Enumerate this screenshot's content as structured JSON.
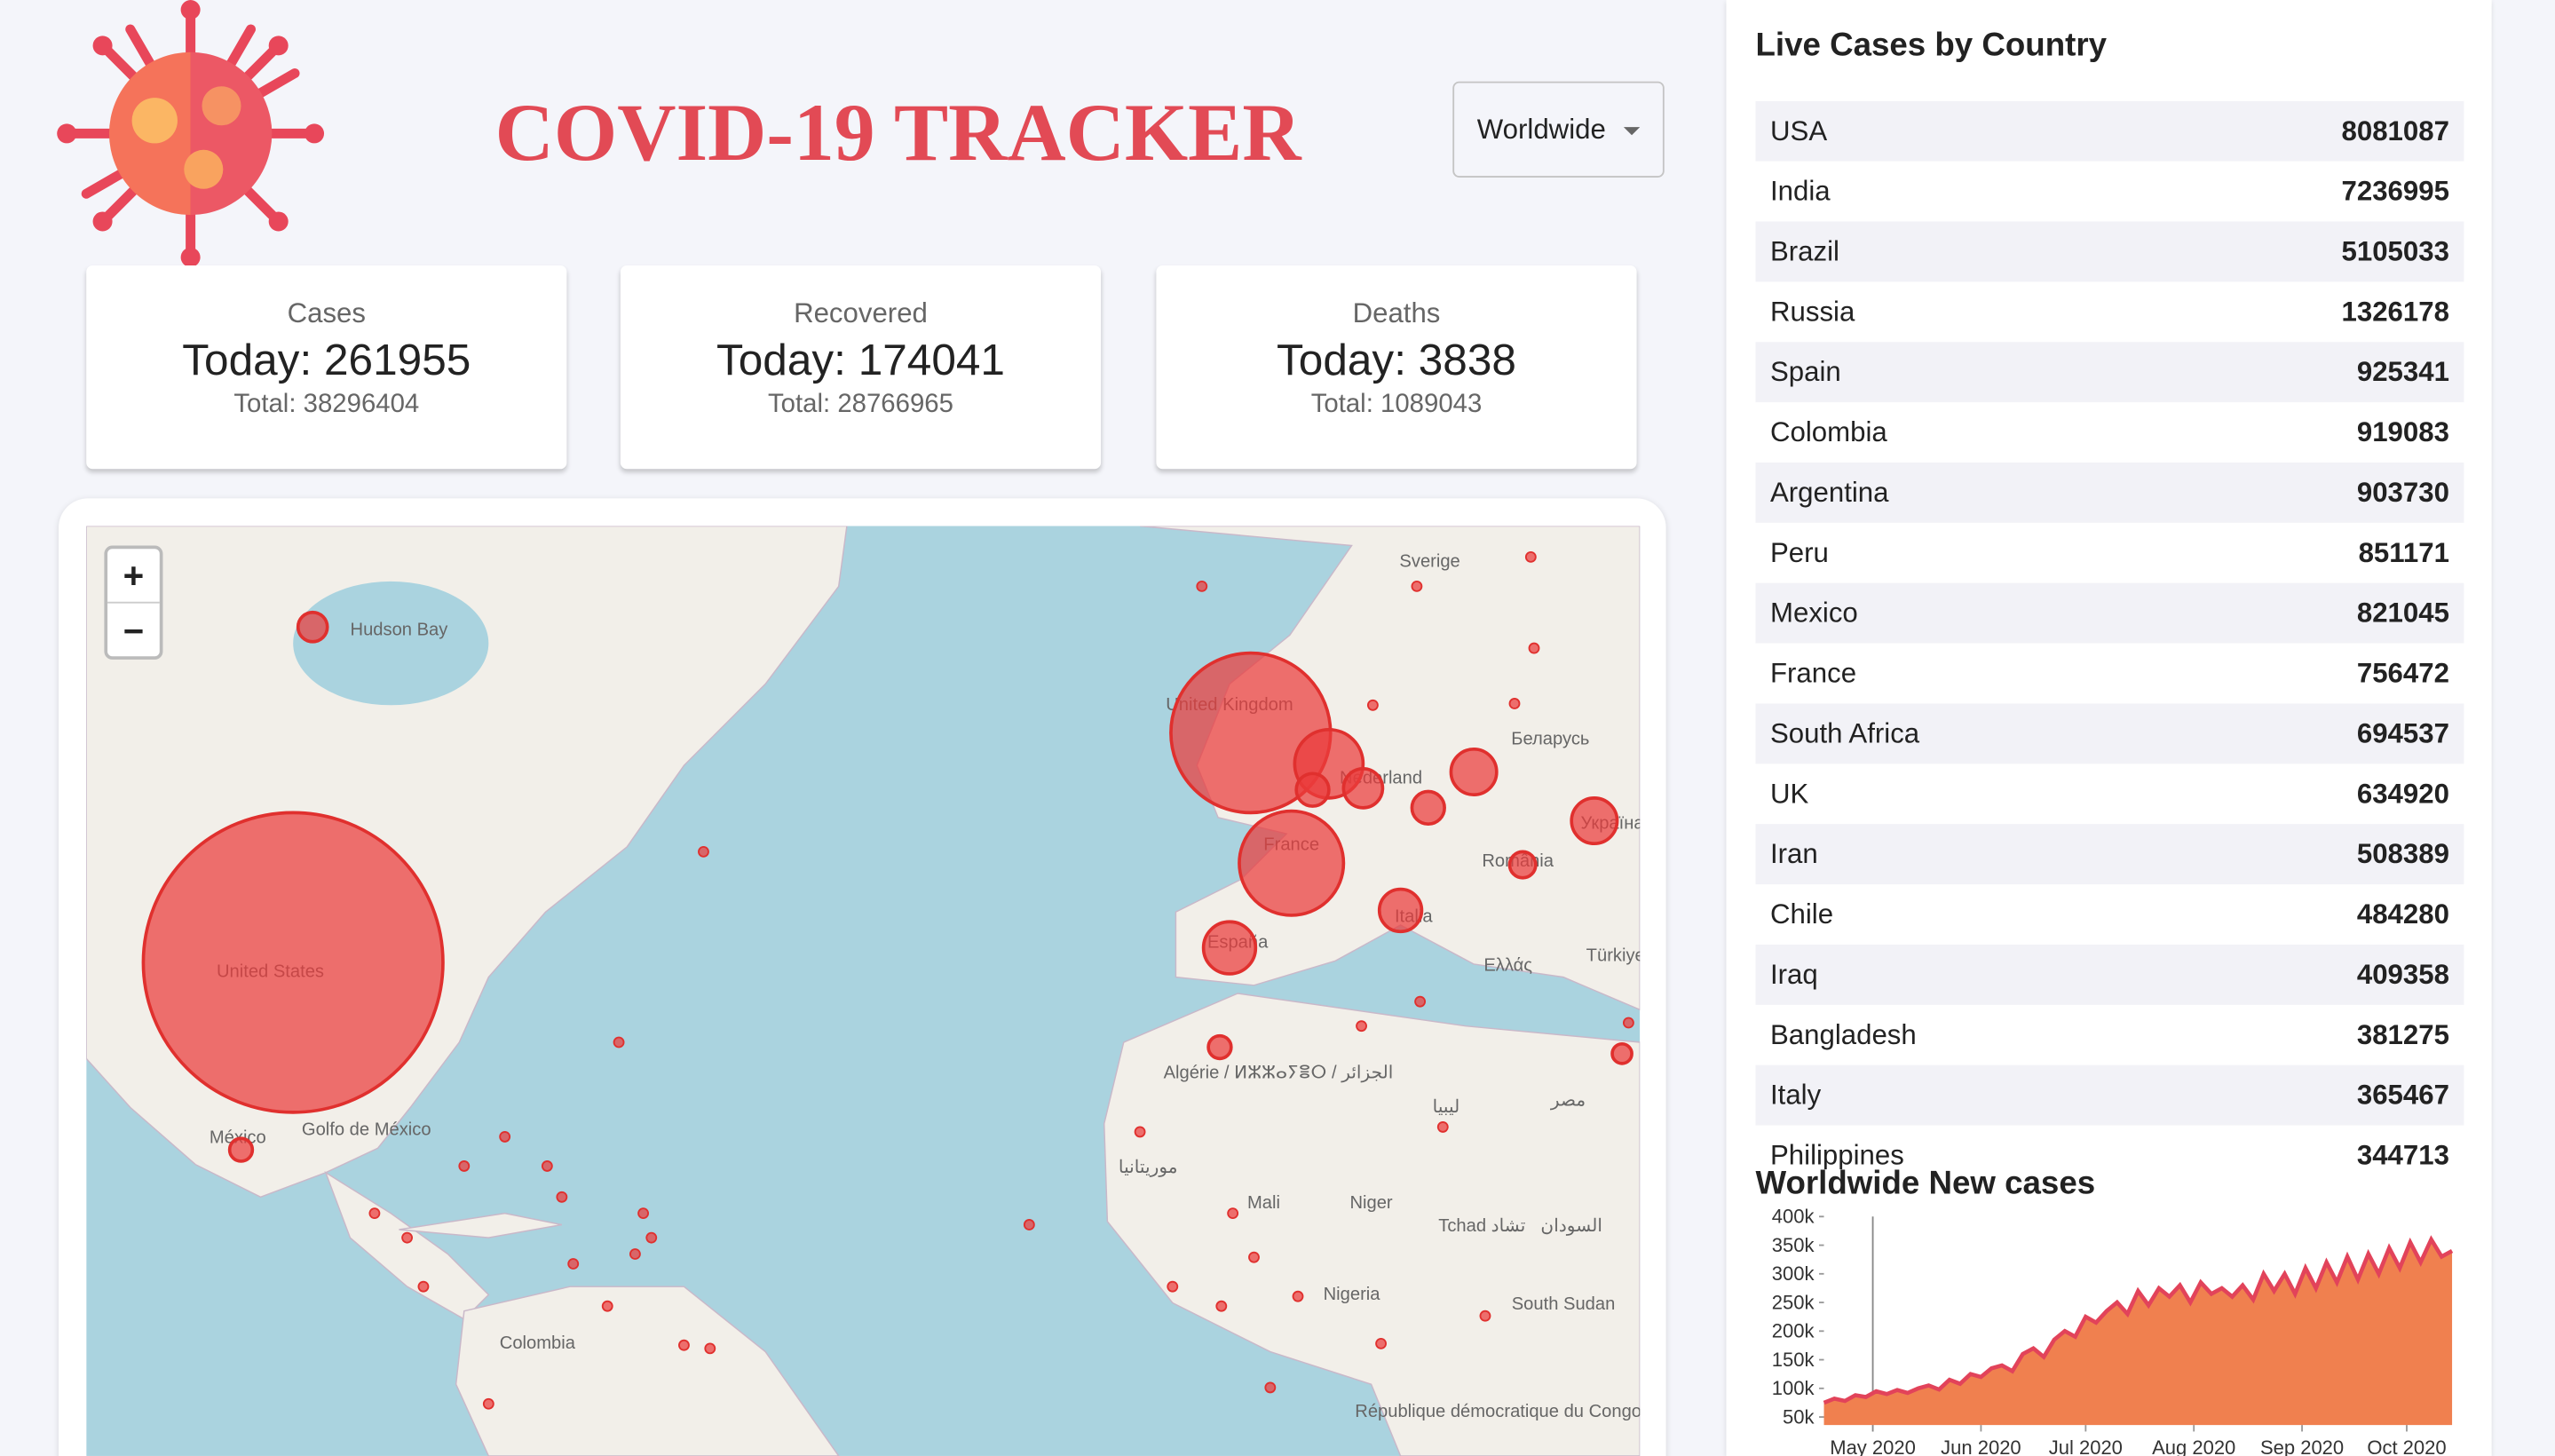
{
  "header": {
    "title": "COVID-19 TRACKER",
    "selector": "Worldwide"
  },
  "stats": [
    {
      "label": "Cases",
      "today_prefix": "Today:",
      "today": 261955,
      "total_prefix": "Total:",
      "total": 38296404
    },
    {
      "label": "Recovered",
      "today_prefix": "Today:",
      "today": 174041,
      "total_prefix": "Total:",
      "total": 28766965
    },
    {
      "label": "Deaths",
      "today_prefix": "Today:",
      "today": 3838,
      "total_prefix": "Total:",
      "total": 1089043
    }
  ],
  "map": {
    "zoom_in": "+",
    "zoom_out": "−",
    "labels": [
      "Hudson Bay",
      "Sverige",
      "United Kingdom",
      "Беларусь",
      "Nederland",
      "France",
      "România",
      "Україна",
      "España",
      "Italia",
      "Ελλάς",
      "Türkiye",
      "United States",
      "México",
      "Golfo de México",
      "Algérie / ⵍⵣⵣⴰⵢⴻⵔ / الجزائر",
      "ليبيا",
      "مصر",
      "موريتانيا",
      "Mali",
      "Niger",
      "Tchad تشاد",
      "السودان",
      "Nigeria",
      "South Sudan",
      "Colombia",
      "République démocratique du Congo"
    ]
  },
  "table": {
    "title": "Live Cases by Country",
    "rows": [
      [
        "USA",
        8081087
      ],
      [
        "India",
        7236995
      ],
      [
        "Brazil",
        5105033
      ],
      [
        "Russia",
        1326178
      ],
      [
        "Spain",
        925341
      ],
      [
        "Colombia",
        919083
      ],
      [
        "Argentina",
        903730
      ],
      [
        "Peru",
        851171
      ],
      [
        "Mexico",
        821045
      ],
      [
        "France",
        756472
      ],
      [
        "South Africa",
        694537
      ],
      [
        "UK",
        634920
      ],
      [
        "Iran",
        508389
      ],
      [
        "Chile",
        484280
      ],
      [
        "Iraq",
        409358
      ],
      [
        "Bangladesh",
        381275
      ],
      [
        "Italy",
        365467
      ],
      [
        "Philippines",
        344713
      ]
    ]
  },
  "chart_data": {
    "type": "area",
    "title": "Worldwide New cases",
    "color": "#f0804f",
    "line_color": "#e2435a",
    "x": [
      0,
      3,
      6,
      9,
      12,
      15,
      18,
      21,
      24,
      27,
      30,
      33,
      36,
      39,
      42,
      45,
      48,
      51,
      54,
      57,
      60,
      63,
      66,
      69,
      72,
      75,
      78,
      81,
      84,
      87,
      90,
      93,
      96,
      99,
      102,
      105,
      108,
      111,
      114,
      117,
      120,
      123,
      126,
      129,
      132,
      135,
      138,
      141,
      144,
      147,
      150,
      153,
      156,
      159,
      162,
      165,
      168,
      171,
      174,
      177,
      180
    ],
    "values": [
      75000,
      82000,
      78000,
      88000,
      85000,
      95000,
      90000,
      97000,
      92000,
      100000,
      105000,
      98000,
      115000,
      108000,
      125000,
      120000,
      135000,
      140000,
      130000,
      160000,
      170000,
      155000,
      185000,
      200000,
      190000,
      225000,
      215000,
      235000,
      250000,
      230000,
      270000,
      245000,
      275000,
      260000,
      280000,
      250000,
      285000,
      265000,
      275000,
      260000,
      280000,
      255000,
      300000,
      270000,
      300000,
      265000,
      310000,
      275000,
      320000,
      285000,
      330000,
      290000,
      335000,
      300000,
      345000,
      310000,
      355000,
      320000,
      360000,
      330000,
      340000
    ],
    "xlim": [
      0,
      182
    ],
    "ylim": [
      36000,
      400000
    ],
    "xticks": [
      {
        "value": 14,
        "label": "May 2020"
      },
      {
        "value": 45,
        "label": "Jun 2020"
      },
      {
        "value": 75,
        "label": "Jul 2020"
      },
      {
        "value": 106,
        "label": "Aug 2020"
      },
      {
        "value": 137,
        "label": "Sep 2020"
      },
      {
        "value": 167,
        "label": "Oct 2020"
      }
    ],
    "yticks": [
      {
        "value": 50000,
        "label": "50k"
      },
      {
        "value": 100000,
        "label": "100k"
      },
      {
        "value": 150000,
        "label": "150k"
      },
      {
        "value": 200000,
        "label": "200k"
      },
      {
        "value": 250000,
        "label": "250k"
      },
      {
        "value": 300000,
        "label": "300k"
      },
      {
        "value": 350000,
        "label": "350k"
      },
      {
        "value": 400000,
        "label": "400k"
      }
    ]
  }
}
